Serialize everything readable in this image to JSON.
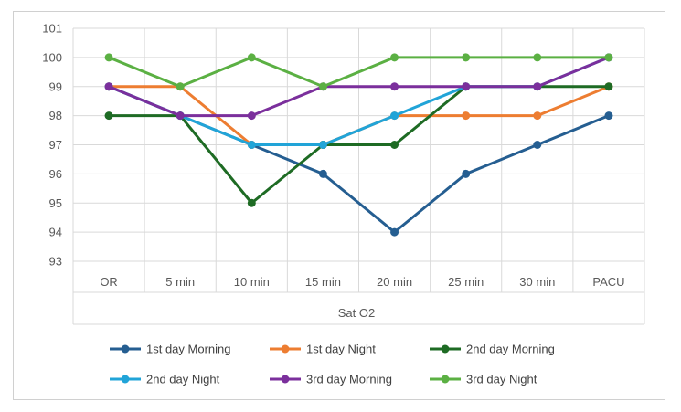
{
  "chart_data": {
    "type": "line",
    "title": "",
    "xlabel": "Sat O2",
    "ylabel": "",
    "categories": [
      "OR",
      "5 min",
      "10 min",
      "15 min",
      "20 min",
      "25 min",
      "30 min",
      "PACU"
    ],
    "ylim": [
      93,
      101
    ],
    "yticks": [
      93,
      94,
      95,
      96,
      97,
      98,
      99,
      100,
      101
    ],
    "grid": true,
    "legend": "bottom",
    "series": [
      {
        "name": "1st day Morning",
        "color": "#255e91",
        "values": [
          99,
          98,
          97,
          96,
          94,
          96,
          97,
          98
        ]
      },
      {
        "name": "1st day Night",
        "color": "#ed7d31",
        "values": [
          99,
          99,
          97,
          97,
          98,
          98,
          98,
          99
        ]
      },
      {
        "name": "2nd day Morning",
        "color": "#1e6b24",
        "values": [
          98,
          98,
          95,
          97,
          97,
          99,
          99,
          99
        ]
      },
      {
        "name": "2nd day Night",
        "color": "#21a4d8",
        "values": [
          99,
          98,
          97,
          97,
          98,
          99,
          99,
          100
        ]
      },
      {
        "name": "3rd day Morning",
        "color": "#7b2f9c",
        "values": [
          99,
          98,
          98,
          99,
          99,
          99,
          99,
          100
        ]
      },
      {
        "name": "3rd day Night",
        "color": "#5bb043",
        "values": [
          100,
          99,
          100,
          99,
          100,
          100,
          100,
          100
        ]
      }
    ]
  }
}
